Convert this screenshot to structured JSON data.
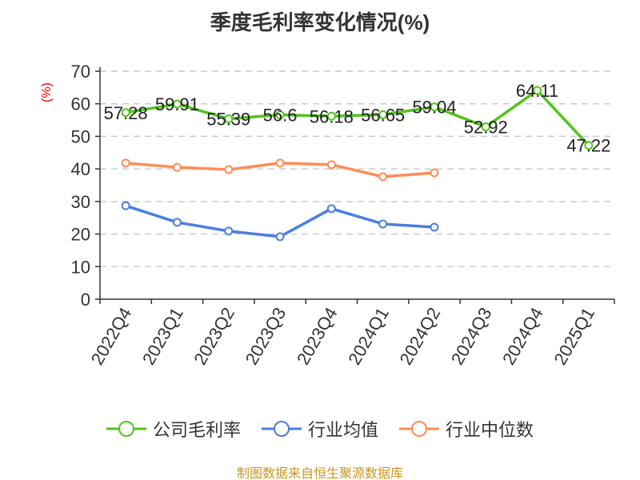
{
  "chart_data": {
    "type": "line",
    "title": "季度毛利率变化情况(%)",
    "ylabel": "(%)",
    "xlabel": "",
    "ylim": [
      0,
      70
    ],
    "yticks": [
      0,
      10,
      20,
      30,
      40,
      50,
      60,
      70
    ],
    "grid": true,
    "legend_position": "bottom",
    "categories": [
      "2022Q4",
      "2023Q1",
      "2023Q2",
      "2023Q3",
      "2023Q4",
      "2024Q1",
      "2024Q2",
      "2024Q3",
      "2024Q4",
      "2025Q1"
    ],
    "series": [
      {
        "name": "公司毛利率",
        "color": "#52c41a",
        "labels": true,
        "values": [
          57.28,
          59.91,
          55.39,
          56.6,
          56.18,
          56.65,
          59.04,
          52.92,
          64.11,
          47.22
        ]
      },
      {
        "name": "行业均值",
        "color": "#4a7fe0",
        "labels": false,
        "values": [
          28.7,
          23.6,
          20.9,
          19.2,
          27.8,
          23.1,
          22.1,
          null,
          null,
          null
        ]
      },
      {
        "name": "行业中位数",
        "color": "#ff8c55",
        "labels": false,
        "values": [
          41.8,
          40.5,
          39.8,
          41.8,
          41.3,
          37.6,
          38.8,
          null,
          null,
          null
        ]
      }
    ]
  },
  "source": "制图数据来自恒生聚源数据库"
}
